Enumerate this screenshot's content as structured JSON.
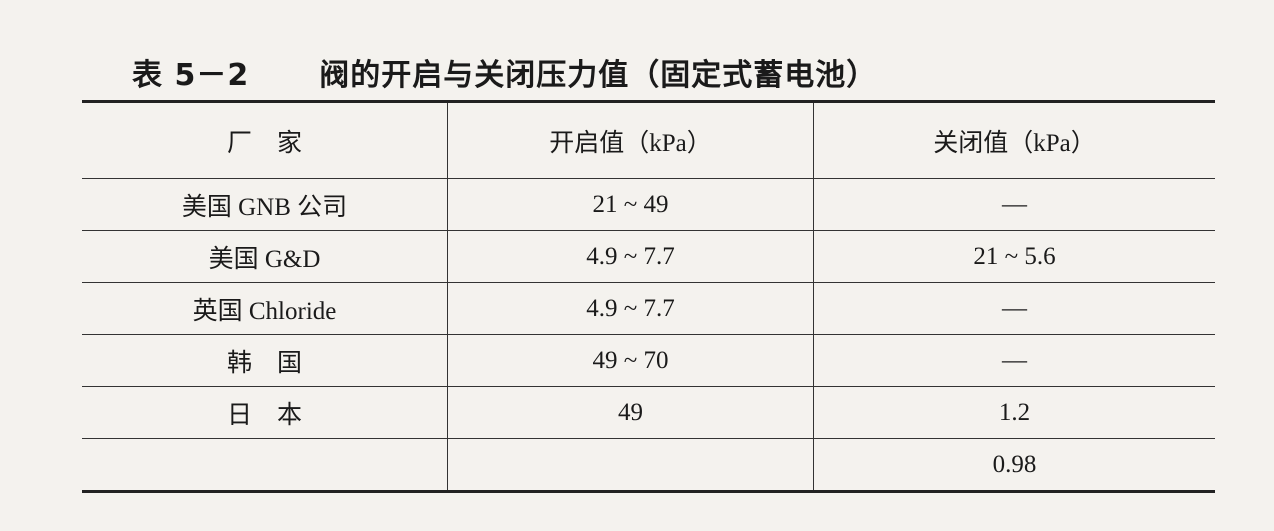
{
  "title": {
    "number": "表 5－2",
    "text": "阀的开启与关闭压力值（固定式蓄电池）"
  },
  "table": {
    "headers": [
      "厂　家",
      "开启值（kPa）",
      "关闭值（kPa）"
    ],
    "rows": [
      [
        "美国 GNB 公司",
        "21 ~ 49",
        "—"
      ],
      [
        "美国 G&D",
        "4.9 ~ 7.7",
        "21 ~ 5.6"
      ],
      [
        "英国 Chloride",
        "4.9 ~ 7.7",
        "—"
      ],
      [
        "韩　国",
        "49 ~ 70",
        "—"
      ],
      [
        "日　本",
        "49",
        "1.2"
      ],
      [
        "",
        "",
        "0.98"
      ]
    ]
  }
}
